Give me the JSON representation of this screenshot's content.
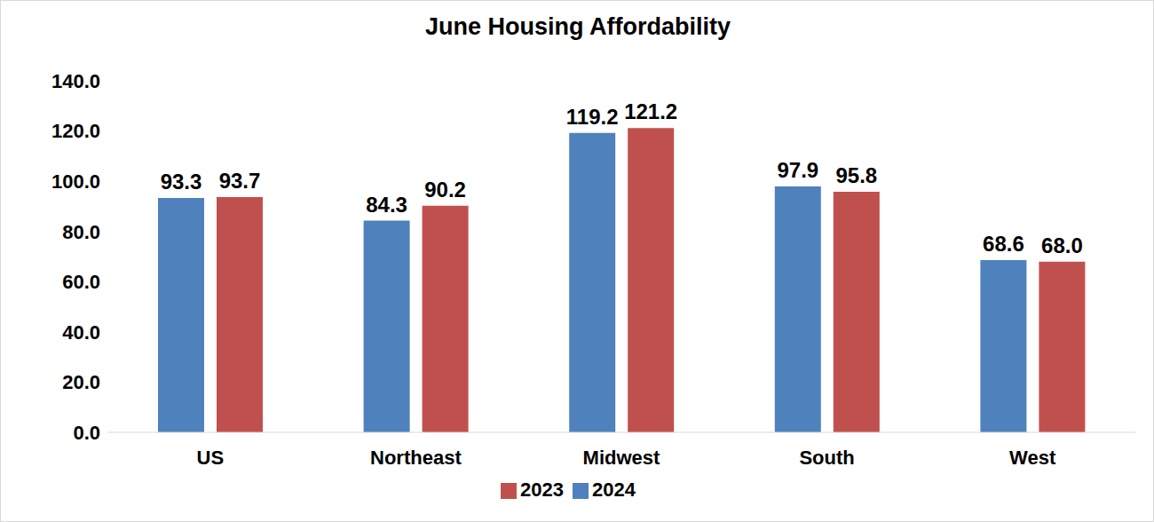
{
  "chart_data": {
    "type": "bar",
    "title": "June Housing Affordability",
    "categories": [
      "US",
      "Northeast",
      "Midwest",
      "South",
      "West"
    ],
    "series": [
      {
        "name": "2024",
        "color": "#4f81bd",
        "values": [
          93.3,
          84.3,
          119.2,
          97.9,
          68.6
        ],
        "value_labels": [
          "93.3",
          "84.3",
          "119.2",
          "97.9",
          "68.6"
        ]
      },
      {
        "name": "2023",
        "color": "#c0504d",
        "values": [
          93.7,
          90.2,
          121.2,
          95.8,
          68.0
        ],
        "value_labels": [
          "93.7",
          "90.2",
          "121.2",
          "95.8",
          "68.0"
        ]
      }
    ],
    "ylim": [
      0,
      140
    ],
    "yticks": [
      {
        "value": 0,
        "label": "0.0"
      },
      {
        "value": 20,
        "label": "20.0"
      },
      {
        "value": 40,
        "label": "40.0"
      },
      {
        "value": 60,
        "label": "60.0"
      },
      {
        "value": 80,
        "label": "80.0"
      },
      {
        "value": 100,
        "label": "100.0"
      },
      {
        "value": 120,
        "label": "120.0"
      },
      {
        "value": 140,
        "label": "140.0"
      }
    ],
    "grid": false,
    "legend": "bottom",
    "data_labels": true
  }
}
